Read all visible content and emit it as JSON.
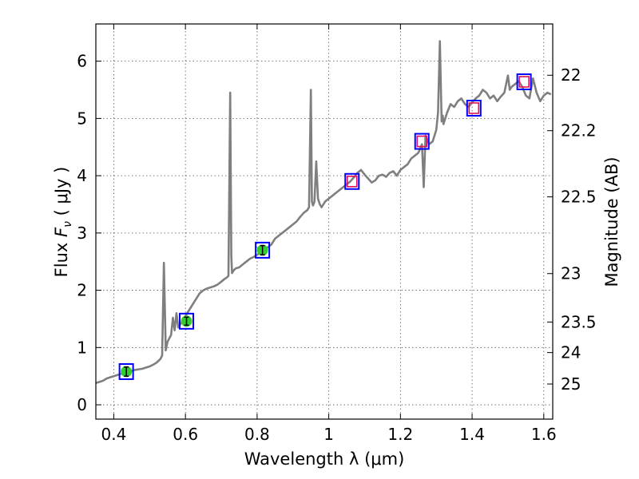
{
  "chart_data": {
    "type": "line",
    "xlabel": "Wavelength  λ (μm)",
    "ylabel": "Flux  F_ν  ( μJy )",
    "ylabel_parts": {
      "pre": "Flux  ",
      "var": "F",
      "sub": "ν",
      "post": "  ( μJy )"
    },
    "y2label": "Magnitude (AB)",
    "xlim": [
      0.35,
      1.625
    ],
    "ylim": [
      -0.25,
      6.65
    ],
    "grid": true,
    "x_ticks": [
      {
        "value": 0.4,
        "label": "0.4"
      },
      {
        "value": 0.6,
        "label": "0.6"
      },
      {
        "value": 0.8,
        "label": "0.8"
      },
      {
        "value": 1.0,
        "label": "1"
      },
      {
        "value": 1.2,
        "label": "1.2"
      },
      {
        "value": 1.4,
        "label": "1.4"
      },
      {
        "value": 1.6,
        "label": "1.6"
      }
    ],
    "y_ticks": [
      {
        "value": 0,
        "label": "0"
      },
      {
        "value": 1,
        "label": "1"
      },
      {
        "value": 2,
        "label": "2"
      },
      {
        "value": 3,
        "label": "3"
      },
      {
        "value": 4,
        "label": "4"
      },
      {
        "value": 5,
        "label": "5"
      },
      {
        "value": 6,
        "label": "6"
      }
    ],
    "y2_ticks": [
      {
        "value": 22,
        "label": "22"
      },
      {
        "value": 22.2,
        "label": "22.2"
      },
      {
        "value": 22.5,
        "label": "22.5"
      },
      {
        "value": 23,
        "label": "23"
      },
      {
        "value": 23.5,
        "label": "23.5"
      },
      {
        "value": 24,
        "label": "24"
      },
      {
        "value": 25,
        "label": "25"
      }
    ],
    "spectrum": {
      "color": "#7f7f7f",
      "x": [
        0.35,
        0.36,
        0.37,
        0.38,
        0.39,
        0.4,
        0.41,
        0.42,
        0.43,
        0.44,
        0.45,
        0.46,
        0.47,
        0.48,
        0.49,
        0.5,
        0.51,
        0.52,
        0.53,
        0.535,
        0.54,
        0.545,
        0.55,
        0.56,
        0.565,
        0.57,
        0.575,
        0.58,
        0.59,
        0.6,
        0.61,
        0.62,
        0.63,
        0.64,
        0.65,
        0.66,
        0.67,
        0.68,
        0.69,
        0.7,
        0.71,
        0.715,
        0.72,
        0.725,
        0.728,
        0.73,
        0.735,
        0.74,
        0.75,
        0.76,
        0.77,
        0.78,
        0.79,
        0.8,
        0.81,
        0.82,
        0.83,
        0.84,
        0.85,
        0.86,
        0.87,
        0.88,
        0.89,
        0.9,
        0.91,
        0.92,
        0.93,
        0.94,
        0.945,
        0.95,
        0.953,
        0.956,
        0.96,
        0.965,
        0.97,
        0.975,
        0.98,
        0.99,
        1.0,
        1.01,
        1.02,
        1.03,
        1.04,
        1.05,
        1.06,
        1.07,
        1.08,
        1.09,
        1.1,
        1.11,
        1.12,
        1.13,
        1.14,
        1.15,
        1.16,
        1.17,
        1.18,
        1.19,
        1.2,
        1.21,
        1.22,
        1.23,
        1.24,
        1.25,
        1.26,
        1.265,
        1.27,
        1.28,
        1.29,
        1.3,
        1.305,
        1.31,
        1.315,
        1.318,
        1.32,
        1.325,
        1.33,
        1.34,
        1.35,
        1.36,
        1.37,
        1.38,
        1.39,
        1.4,
        1.41,
        1.42,
        1.43,
        1.44,
        1.45,
        1.46,
        1.47,
        1.48,
        1.49,
        1.5,
        1.505,
        1.51,
        1.52,
        1.53,
        1.54,
        1.55,
        1.56,
        1.57,
        1.58,
        1.59,
        1.6,
        1.61,
        1.62
      ],
      "y": [
        0.38,
        0.4,
        0.42,
        0.46,
        0.48,
        0.5,
        0.52,
        0.54,
        0.55,
        0.57,
        0.59,
        0.61,
        0.62,
        0.63,
        0.65,
        0.67,
        0.7,
        0.74,
        0.8,
        0.86,
        2.48,
        0.95,
        1.1,
        1.22,
        1.52,
        1.3,
        1.6,
        1.35,
        1.45,
        1.55,
        1.65,
        1.75,
        1.85,
        1.95,
        2.0,
        2.03,
        2.05,
        2.07,
        2.1,
        2.15,
        2.2,
        2.22,
        2.25,
        5.45,
        2.6,
        2.3,
        2.35,
        2.38,
        2.4,
        2.45,
        2.5,
        2.55,
        2.58,
        2.62,
        2.66,
        2.7,
        2.75,
        2.8,
        2.9,
        2.95,
        3.0,
        3.05,
        3.1,
        3.15,
        3.2,
        3.28,
        3.35,
        3.4,
        3.45,
        5.5,
        3.55,
        3.48,
        3.55,
        4.25,
        3.6,
        3.5,
        3.45,
        3.55,
        3.6,
        3.65,
        3.7,
        3.75,
        3.8,
        3.85,
        3.9,
        3.97,
        4.05,
        4.1,
        4.02,
        3.95,
        3.88,
        3.92,
        4.0,
        4.02,
        3.98,
        4.05,
        4.08,
        4.0,
        4.1,
        4.15,
        4.2,
        4.3,
        4.35,
        4.4,
        4.55,
        3.8,
        4.7,
        4.55,
        4.6,
        4.8,
        5.1,
        6.35,
        4.95,
        5.05,
        4.9,
        5.0,
        5.1,
        5.25,
        5.2,
        5.3,
        5.35,
        5.25,
        5.2,
        5.28,
        5.35,
        5.4,
        5.5,
        5.45,
        5.35,
        5.4,
        5.3,
        5.38,
        5.45,
        5.75,
        5.5,
        5.55,
        5.6,
        5.65,
        5.55,
        5.4,
        5.35,
        5.7,
        5.45,
        5.3,
        5.4,
        5.45,
        5.42
      ],
      "spikes_note": ""
    },
    "photometry": [
      {
        "x": 0.435,
        "y": 0.58,
        "err": 0.08,
        "kind": "measured"
      },
      {
        "x": 0.603,
        "y": 1.46,
        "err": 0.07,
        "kind": "measured"
      },
      {
        "x": 0.815,
        "y": 2.7,
        "err": 0.08,
        "kind": "measured"
      },
      {
        "x": 1.065,
        "y": 3.9,
        "err": 0,
        "kind": "model"
      },
      {
        "x": 1.26,
        "y": 4.6,
        "err": 0,
        "kind": "model"
      },
      {
        "x": 1.405,
        "y": 5.18,
        "err": 0,
        "kind": "model"
      },
      {
        "x": 1.545,
        "y": 5.64,
        "err": 0,
        "kind": "model"
      }
    ],
    "colors": {
      "box": "#0000ff",
      "measured": "#33cc33",
      "model": "#e0105a",
      "grid": "#555555"
    }
  }
}
